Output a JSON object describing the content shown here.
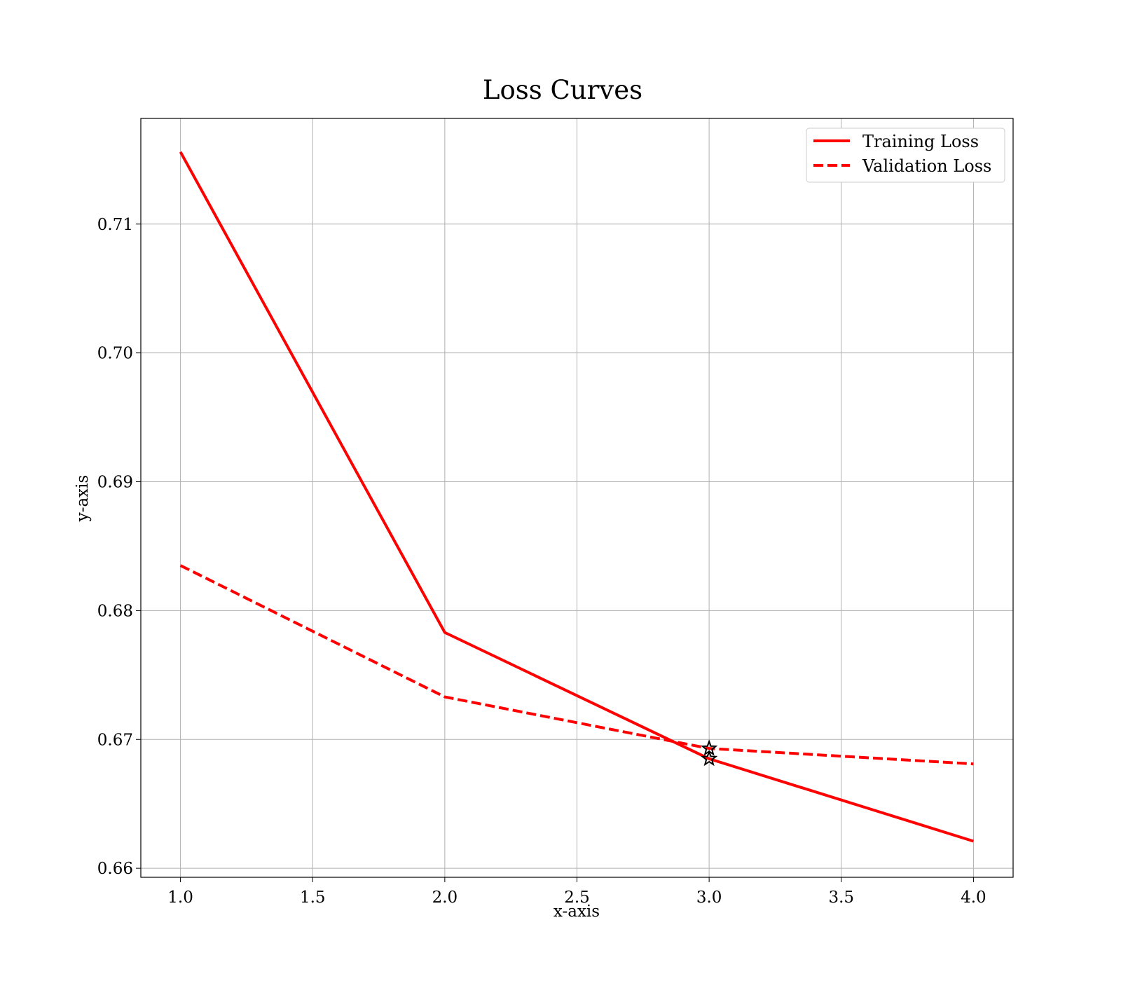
{
  "chart_data": {
    "type": "line",
    "title": "Loss Curves",
    "xlabel": "x-axis",
    "ylabel": "y-axis",
    "xlim": [
      0.85,
      4.15
    ],
    "ylim": [
      0.6593,
      0.7182
    ],
    "x_ticks": [
      1.0,
      1.5,
      2.0,
      2.5,
      3.0,
      3.5,
      4.0
    ],
    "x_tick_labels": [
      "1.0",
      "1.5",
      "2.0",
      "2.5",
      "3.0",
      "3.5",
      "4.0"
    ],
    "y_ticks": [
      0.66,
      0.67,
      0.68,
      0.69,
      0.7,
      0.71
    ],
    "y_tick_labels": [
      "0.66",
      "0.67",
      "0.68",
      "0.69",
      "0.70",
      "0.71"
    ],
    "grid": true,
    "legend_position": "top-right",
    "x": [
      1,
      2,
      3,
      4
    ],
    "series": [
      {
        "name": "Training Loss",
        "values": [
          0.7156,
          0.6783,
          0.6685,
          0.6621
        ],
        "color": "#ff0000",
        "style": "solid"
      },
      {
        "name": "Validation Loss",
        "values": [
          0.6835,
          0.6733,
          0.6693,
          0.6681
        ],
        "color": "#ff0000",
        "style": "dashed"
      }
    ],
    "markers": [
      {
        "x": 3,
        "y": 0.6693,
        "symbol": "star",
        "color": "#000000"
      },
      {
        "x": 3,
        "y": 0.6685,
        "symbol": "star",
        "color": "#000000"
      }
    ]
  }
}
